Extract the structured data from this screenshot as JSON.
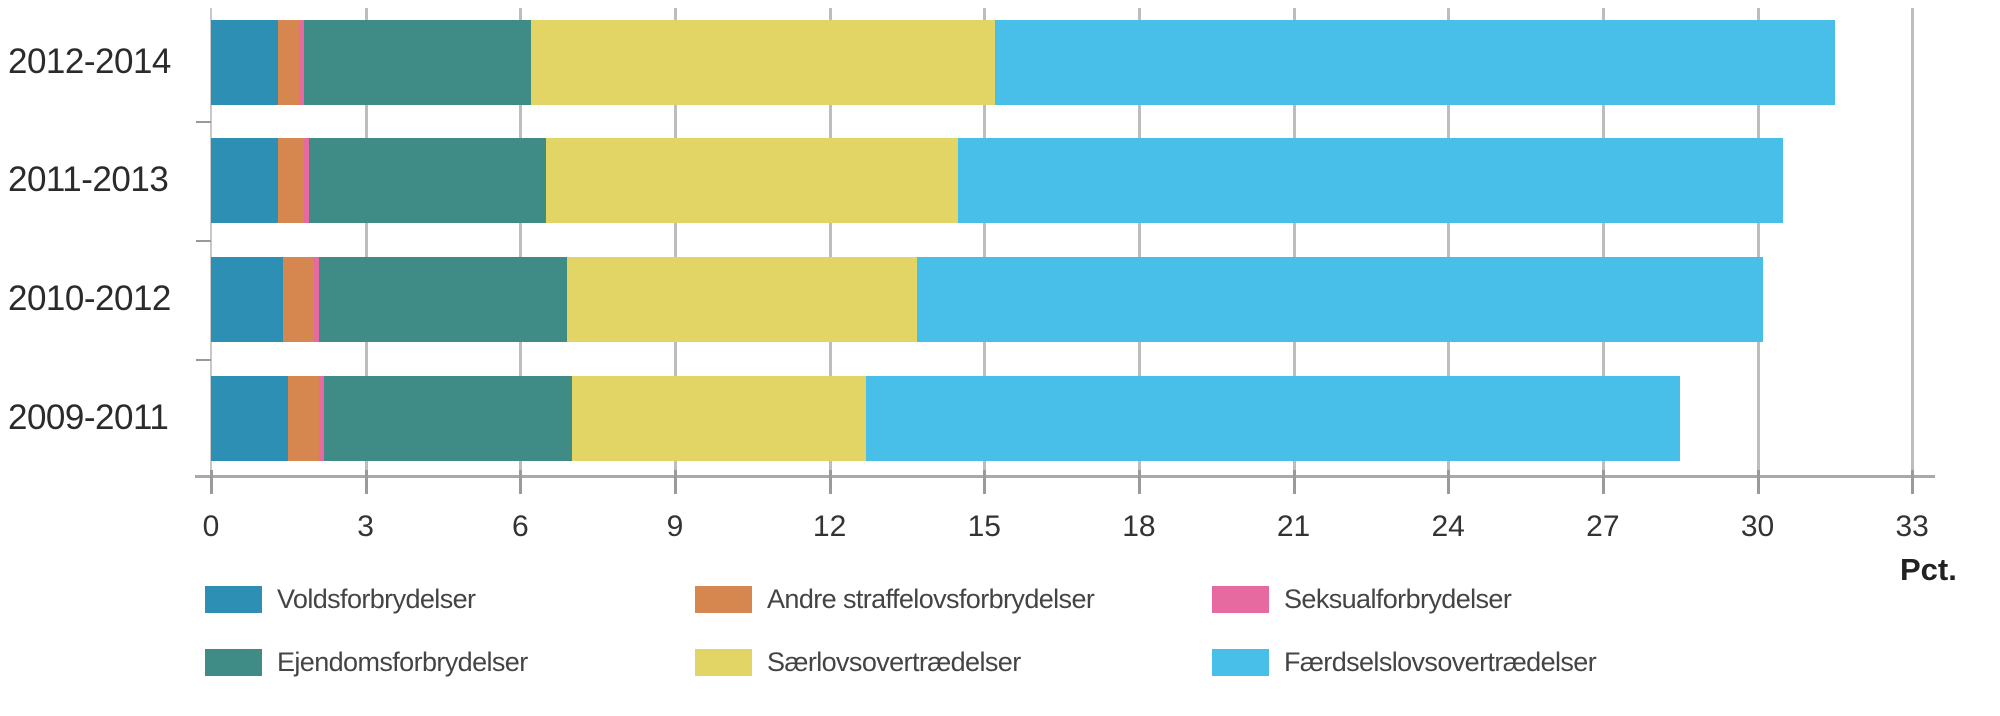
{
  "chart_data": {
    "type": "bar",
    "orientation": "horizontal",
    "stacked": true,
    "title": "",
    "xlabel": "Pct.",
    "ylabel": "",
    "xlim": [
      0,
      33
    ],
    "xticks": [
      0,
      3,
      6,
      9,
      12,
      15,
      18,
      21,
      24,
      27,
      30,
      33
    ],
    "grid": true,
    "legend_position": "bottom",
    "categories": [
      "2012-2014",
      "2011-2013",
      "2010-2012",
      "2009-2011"
    ],
    "series": [
      {
        "name": "Voldsforbrydelser",
        "color": "#2e8fb5",
        "values": [
          1.3,
          1.3,
          1.4,
          1.5
        ]
      },
      {
        "name": "Andre straffelovsforbrydelser",
        "color": "#d5874f",
        "values": [
          0.4,
          0.5,
          0.6,
          0.6
        ]
      },
      {
        "name": "Seksualforbrydelser",
        "color": "#e66a9f",
        "values": [
          0.1,
          0.1,
          0.1,
          0.1
        ]
      },
      {
        "name": "Ejendomsforbrydelser",
        "color": "#3f8c86",
        "values": [
          4.4,
          4.6,
          4.8,
          4.8
        ]
      },
      {
        "name": "Særlovsovertrædelser",
        "color": "#e2d565",
        "values": [
          9.0,
          8.0,
          6.8,
          5.7
        ]
      },
      {
        "name": "Færdselslovsovertrædelser",
        "color": "#47bfe8",
        "values": [
          16.3,
          16.0,
          16.4,
          15.8
        ]
      }
    ],
    "totals": [
      31.5,
      30.5,
      30.1,
      28.5
    ]
  },
  "axis": {
    "unit_label": "Pct.",
    "tick_labels": [
      "0",
      "3",
      "6",
      "9",
      "12",
      "15",
      "18",
      "21",
      "24",
      "27",
      "30",
      "33"
    ]
  },
  "legend": [
    {
      "label": "Voldsforbrydelser",
      "color": "#2e8fb5"
    },
    {
      "label": "Andre straffelovsforbrydelser",
      "color": "#d5874f"
    },
    {
      "label": "Seksualforbrydelser",
      "color": "#e66a9f"
    },
    {
      "label": "Ejendomsforbrydelser",
      "color": "#3f8c86"
    },
    {
      "label": "Særlovsovertrædelser",
      "color": "#e2d565"
    },
    {
      "label": "Færdselslovsovertrædelser",
      "color": "#47bfe8"
    }
  ]
}
